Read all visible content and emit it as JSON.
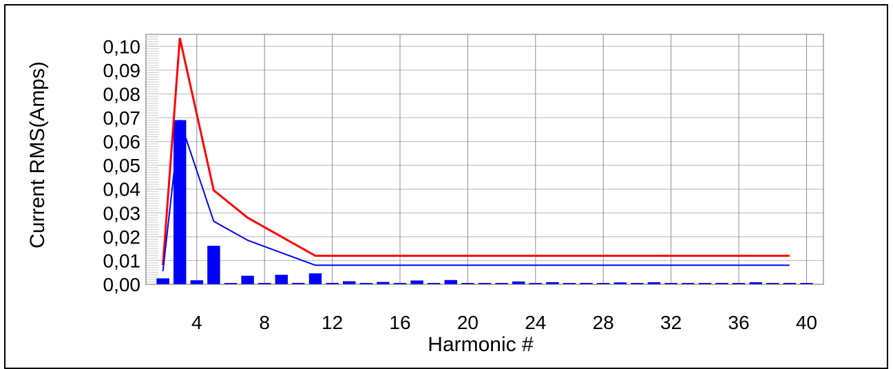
{
  "chart_data": {
    "type": "bar",
    "title": "",
    "xlabel": "Harmonic #",
    "ylabel": "Current RMS(Amps)",
    "xlim": [
      1,
      41
    ],
    "ylim": [
      0,
      0.105
    ],
    "x_ticks": [
      4,
      8,
      12,
      16,
      20,
      24,
      28,
      32,
      36,
      40
    ],
    "x_tick_labels": [
      "4",
      "8",
      "12",
      "16",
      "20",
      "24",
      "28",
      "32",
      "36",
      "40"
    ],
    "y_ticks": [
      0,
      0.01,
      0.02,
      0.03,
      0.04,
      0.05,
      0.06,
      0.07,
      0.08,
      0.09,
      0.1
    ],
    "y_tick_labels": [
      "0,00",
      "0,01",
      "0,02",
      "0,03",
      "0,04",
      "0,05",
      "0,06",
      "0,07",
      "0,08",
      "0,09",
      "0,10"
    ],
    "grid": true,
    "legend": "none",
    "bars": {
      "color": "#0000ff",
      "x": [
        2,
        3,
        4,
        5,
        6,
        7,
        8,
        9,
        10,
        11,
        12,
        13,
        14,
        15,
        16,
        17,
        18,
        19,
        20,
        21,
        22,
        23,
        24,
        25,
        26,
        27,
        28,
        29,
        30,
        31,
        32,
        33,
        34,
        35,
        36,
        37,
        38,
        39,
        40
      ],
      "values": [
        0.0025,
        0.069,
        0.0017,
        0.0162,
        0.0003,
        0.0036,
        0.0003,
        0.004,
        0.0006,
        0.0046,
        0.0006,
        0.0013,
        0.0003,
        0.001,
        0.0003,
        0.0016,
        0.0003,
        0.0018,
        0.0003,
        0.0003,
        0.0003,
        0.0012,
        0.0003,
        0.0009,
        0.0003,
        0.0006,
        0.0003,
        0.0008,
        0.0003,
        0.0009,
        0.0003,
        0.0003,
        0.0003,
        0.0006,
        0.0003,
        0.0009,
        0.0003,
        0.0006,
        0.0003
      ]
    },
    "series": [
      {
        "color": "#ff0000",
        "x": [
          2,
          3,
          5,
          7,
          11,
          39
        ],
        "values": [
          0.008,
          0.1035,
          0.0395,
          0.028,
          0.012,
          0.012
        ]
      },
      {
        "color": "#0000ff",
        "x": [
          2,
          3,
          5,
          7,
          11,
          39
        ],
        "values": [
          0.0055,
          0.069,
          0.0265,
          0.0185,
          0.008,
          0.008
        ]
      }
    ]
  }
}
